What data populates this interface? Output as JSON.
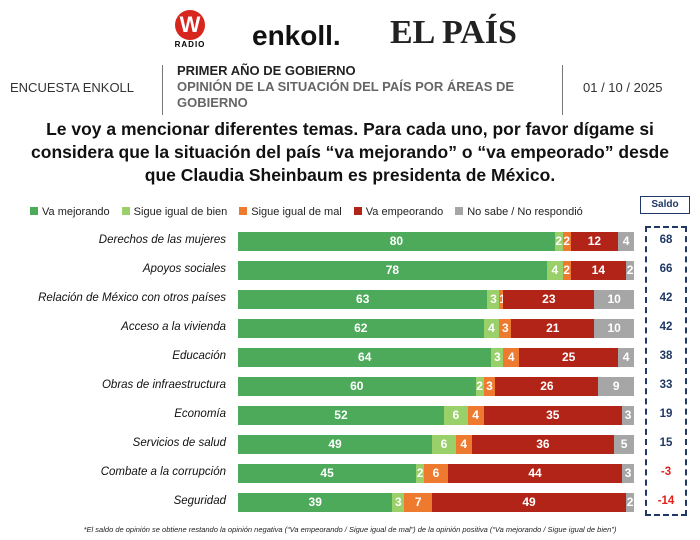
{
  "header": {
    "logos": [
      "W RADIO",
      "enkoll.",
      "EL PAÍS"
    ],
    "left": "ENCUESTA ENKOLL",
    "line1": "PRIMER AÑO DE GOBIERNO",
    "line2": "OPINIÓN DE LA SITUACIÓN DEL PAÍS POR ÁREAS DE",
    "line3": "GOBIERNO",
    "date": "01 / 10 / 2025"
  },
  "chart_data": {
    "type": "bar",
    "orientation": "horizontal",
    "stacked": true,
    "title_lines": [
      "Le voy a mencionar diferentes temas. Para cada uno, por favor dígame si",
      "considera que la situación del país “va mejorando” o “va empeorado” desde",
      "que Claudia Sheinbaum es presidenta de México."
    ],
    "legend_position": "top",
    "categories": [
      "Derechos de las mujeres",
      "Apoyos sociales",
      "Relación de México con otros países",
      "Acceso a la vivienda",
      "Educación",
      "Obras de infraestructura",
      "Economía",
      "Servicios de salud",
      "Combate a la corrupción",
      "Seguridad"
    ],
    "series": [
      {
        "name": "Va mejorando",
        "color": "#4caa5a",
        "values": [
          80,
          78,
          63,
          62,
          64,
          60,
          52,
          49,
          45,
          39
        ]
      },
      {
        "name": "Sigue igual de bien",
        "color": "#9ad06a",
        "values": [
          2,
          4,
          3,
          4,
          3,
          2,
          6,
          6,
          2,
          3
        ]
      },
      {
        "name": "Sigue igual de mal",
        "color": "#ee7a30",
        "values": [
          2,
          2,
          1,
          3,
          4,
          3,
          4,
          4,
          6,
          7
        ]
      },
      {
        "name": "Va empeorando",
        "color": "#b22418",
        "values": [
          12,
          14,
          23,
          21,
          25,
          26,
          35,
          36,
          44,
          49
        ]
      },
      {
        "name": "No sabe / No respondió",
        "color": "#a6a6a6",
        "values": [
          4,
          2,
          10,
          10,
          4,
          9,
          3,
          5,
          3,
          2
        ]
      }
    ],
    "saldo_label": "Saldo",
    "saldo": [
      68,
      66,
      42,
      42,
      38,
      33,
      19,
      15,
      -3,
      -14
    ],
    "footnote": "*El saldo de opinión se obtiene restando la opinión negativa (“Va empeorando / Sigue igual de mal”) de la opinión positiva (“Va mejorando / Sigue igual de bien”)"
  }
}
